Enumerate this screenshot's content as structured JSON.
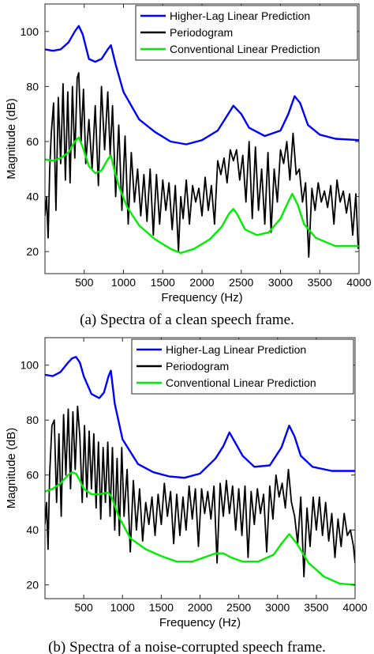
{
  "chart_data": [
    {
      "type": "line",
      "caption": "(a) Spectra of a clean speech frame.",
      "xlabel": "Frequency (Hz)",
      "ylabel": "Magnitude (dB)",
      "xlim": [
        0,
        4000
      ],
      "ylim": [
        12,
        110
      ],
      "xticks": [
        500,
        1000,
        1500,
        2000,
        2500,
        3000,
        3500,
        4000
      ],
      "yticks": [
        20,
        40,
        60,
        80,
        100
      ],
      "grid": false,
      "legend_position": "top-right",
      "series": [
        {
          "name": "Higher-Lag Linear Prediction",
          "color": "#0000ff",
          "x": [
            0,
            100,
            200,
            300,
            380,
            430,
            480,
            560,
            640,
            720,
            800,
            840,
            900,
            1000,
            1200,
            1400,
            1600,
            1800,
            2000,
            2200,
            2300,
            2400,
            2500,
            2600,
            2800,
            3000,
            3100,
            3180,
            3250,
            3350,
            3500,
            3700,
            4000
          ],
          "y": [
            93.5,
            93,
            93.5,
            96,
            100,
            102,
            99,
            90,
            89,
            90,
            93.5,
            95,
            88,
            78,
            68,
            63.5,
            60,
            59,
            60.5,
            64,
            68.5,
            73,
            70,
            65,
            62,
            64,
            70,
            76.5,
            74,
            66,
            62.5,
            61,
            60.5
          ]
        },
        {
          "name": "Periodogram",
          "color": "#000000",
          "x": [
            0,
            20,
            40,
            60,
            80,
            110,
            140,
            170,
            200,
            230,
            260,
            290,
            320,
            350,
            380,
            410,
            430,
            460,
            490,
            520,
            560,
            600,
            640,
            680,
            720,
            760,
            800,
            830,
            860,
            900,
            940,
            980,
            1020,
            1060,
            1100,
            1140,
            1180,
            1220,
            1260,
            1300,
            1340,
            1380,
            1420,
            1460,
            1500,
            1540,
            1580,
            1620,
            1660,
            1700,
            1730,
            1760,
            1800,
            1840,
            1880,
            1920,
            1960,
            2000,
            2040,
            2080,
            2120,
            2160,
            2200,
            2240,
            2280,
            2320,
            2360,
            2400,
            2440,
            2480,
            2520,
            2560,
            2600,
            2640,
            2680,
            2720,
            2760,
            2800,
            2840,
            2880,
            2920,
            2960,
            3000,
            3040,
            3080,
            3120,
            3160,
            3200,
            3240,
            3280,
            3320,
            3360,
            3400,
            3440,
            3480,
            3520,
            3560,
            3600,
            3640,
            3680,
            3720,
            3760,
            3800,
            3840,
            3880,
            3920,
            3960,
            3990
          ],
          "y": [
            33,
            40,
            25,
            50,
            63,
            74,
            35,
            76,
            52,
            81,
            46,
            78,
            45,
            80,
            54,
            83,
            85,
            60,
            79,
            52,
            68,
            50,
            73,
            44,
            80,
            57,
            78,
            55,
            73,
            40,
            66,
            35,
            62,
            30,
            56,
            38,
            50,
            33,
            48,
            31,
            50,
            26,
            48,
            30,
            46,
            35,
            45,
            28,
            44,
            20,
            40,
            32,
            46,
            30,
            44,
            38,
            43,
            33,
            47,
            35,
            44,
            30,
            53,
            48,
            54,
            45,
            57,
            53,
            57,
            46,
            55,
            38,
            60,
            32,
            58,
            35,
            50,
            30,
            56,
            27,
            50,
            38,
            57,
            52,
            60,
            46,
            63,
            48,
            50,
            38,
            45,
            18,
            43,
            35,
            45,
            38,
            42,
            36,
            44,
            30,
            46,
            38,
            42,
            34,
            41,
            26,
            41,
            21
          ]
        },
        {
          "name": "Conventional Linear Prediction",
          "color": "#00ee00",
          "x": [
            0,
            100,
            200,
            300,
            380,
            430,
            480,
            560,
            640,
            720,
            800,
            840,
            880,
            950,
            1050,
            1200,
            1400,
            1600,
            1730,
            1900,
            2100,
            2250,
            2350,
            2400,
            2450,
            2550,
            2700,
            2850,
            3000,
            3080,
            3150,
            3220,
            3300,
            3450,
            3700,
            4000
          ],
          "y": [
            53.5,
            53,
            54,
            56,
            60,
            61.5,
            58,
            51,
            48.5,
            49.5,
            53.5,
            55,
            50,
            43,
            36,
            29.5,
            24.5,
            21,
            19.5,
            21,
            24.5,
            29,
            34,
            35.5,
            33.5,
            28,
            26,
            27,
            32,
            37,
            41,
            37,
            30,
            25,
            22,
            22
          ]
        }
      ]
    },
    {
      "type": "line",
      "caption": "(b) Spectra of a noise-corrupted speech frame.",
      "xlabel": "Frequency (Hz)",
      "ylabel": "Magnitude (dB)",
      "xlim": [
        0,
        4000
      ],
      "ylim": [
        15,
        110
      ],
      "xticks": [
        500,
        1000,
        1500,
        2000,
        2500,
        3000,
        3500,
        4000
      ],
      "yticks": [
        20,
        40,
        60,
        80,
        100
      ],
      "grid": false,
      "legend_position": "top-right",
      "series": [
        {
          "name": "Higher-Lag Linear Prediction",
          "color": "#0000ff",
          "x": [
            0,
            100,
            200,
            300,
            350,
            400,
            450,
            500,
            600,
            700,
            760,
            820,
            850,
            900,
            1000,
            1200,
            1400,
            1600,
            1800,
            2000,
            2200,
            2300,
            2380,
            2450,
            2550,
            2700,
            2900,
            3050,
            3150,
            3220,
            3300,
            3450,
            3700,
            4000
          ],
          "y": [
            96.5,
            96,
            97.5,
            101,
            102.5,
            103,
            101,
            96,
            89.5,
            88,
            90,
            96,
            98,
            86,
            73,
            64,
            61,
            59.5,
            59,
            60.5,
            66,
            70.5,
            75.5,
            72,
            67,
            63,
            63.5,
            70,
            78,
            74,
            67,
            63,
            61.5,
            61.5
          ]
        },
        {
          "name": "Periodogram",
          "color": "#000000",
          "x": [
            0,
            20,
            40,
            60,
            90,
            120,
            150,
            180,
            210,
            240,
            270,
            300,
            330,
            360,
            390,
            420,
            450,
            480,
            510,
            540,
            570,
            600,
            630,
            660,
            690,
            720,
            750,
            780,
            810,
            840,
            870,
            900,
            930,
            960,
            990,
            1020,
            1060,
            1100,
            1140,
            1180,
            1220,
            1260,
            1300,
            1340,
            1380,
            1420,
            1460,
            1500,
            1540,
            1580,
            1620,
            1660,
            1700,
            1740,
            1780,
            1820,
            1860,
            1900,
            1940,
            1980,
            2020,
            2060,
            2100,
            2140,
            2180,
            2220,
            2260,
            2300,
            2340,
            2380,
            2420,
            2460,
            2500,
            2540,
            2580,
            2620,
            2660,
            2700,
            2740,
            2780,
            2820,
            2860,
            2900,
            2940,
            2980,
            3020,
            3060,
            3100,
            3140,
            3180,
            3220,
            3260,
            3300,
            3340,
            3380,
            3420,
            3460,
            3500,
            3540,
            3580,
            3620,
            3660,
            3700,
            3740,
            3780,
            3820,
            3860,
            3900,
            3940,
            3980,
            4000
          ],
          "y": [
            42,
            50,
            33,
            60,
            78,
            80,
            50,
            75,
            45,
            82,
            60,
            84,
            55,
            83,
            62,
            85,
            74,
            50,
            78,
            52,
            76,
            55,
            75,
            48,
            72,
            44,
            70,
            50,
            72,
            45,
            70,
            40,
            66,
            38,
            70,
            45,
            62,
            32,
            58,
            40,
            55,
            36,
            50,
            42,
            52,
            38,
            53,
            42,
            57,
            45,
            54,
            35,
            53,
            38,
            52,
            40,
            56,
            44,
            55,
            34,
            55,
            46,
            54,
            44,
            56,
            28,
            57,
            45,
            58,
            46,
            56,
            40,
            55,
            38,
            56,
            30,
            54,
            42,
            55,
            46,
            53,
            32,
            56,
            44,
            60,
            52,
            57,
            48,
            62,
            50,
            45,
            35,
            52,
            23,
            48,
            34,
            52,
            40,
            52,
            38,
            50,
            36,
            46,
            30,
            44,
            34,
            46,
            38,
            40,
            34,
            28
          ]
        },
        {
          "name": "Conventional Linear Prediction",
          "color": "#00ee00",
          "x": [
            0,
            100,
            200,
            300,
            350,
            400,
            450,
            500,
            600,
            700,
            780,
            820,
            860,
            950,
            1100,
            1300,
            1500,
            1700,
            1900,
            2100,
            2200,
            2300,
            2400,
            2550,
            2750,
            2950,
            3050,
            3150,
            3250,
            3400,
            3600,
            3800,
            4000
          ],
          "y": [
            54,
            55,
            57,
            60,
            61,
            60.5,
            58,
            55,
            53,
            53,
            53.5,
            53.5,
            52,
            45,
            37,
            33,
            30.5,
            28.5,
            28.5,
            30.5,
            31.5,
            31.5,
            30,
            28.5,
            28.5,
            31,
            35,
            38.5,
            35,
            28,
            23,
            20.5,
            20
          ]
        }
      ]
    }
  ]
}
